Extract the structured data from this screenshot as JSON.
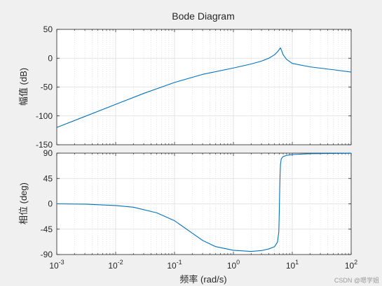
{
  "watermark": "CSDN @嗯学姐",
  "chart_data": [
    {
      "type": "line",
      "panel": "magnitude",
      "title": "Bode Diagram",
      "ylabel": "幅值 (dB)",
      "xscale": "log",
      "xlim": [
        0.001,
        100
      ],
      "ylim": [
        -150,
        50
      ],
      "yticks": [
        50,
        0,
        -50,
        -100,
        -150
      ],
      "grid": true,
      "x": [
        0.001,
        0.003,
        0.01,
        0.03,
        0.1,
        0.3,
        1,
        2,
        3,
        4,
        5,
        5.6,
        6.0,
        6.3,
        6.6,
        7,
        8,
        10,
        20,
        50,
        100
      ],
      "values": [
        -120,
        -101,
        -80,
        -61,
        -42,
        -28,
        -17,
        -10,
        -5,
        0,
        6,
        11,
        15,
        18,
        13,
        6,
        -2,
        -9,
        -15,
        -20,
        -24
      ]
    },
    {
      "type": "line",
      "panel": "phase",
      "ylabel": "相位 (deg)",
      "xlabel": "频率  (rad/s)",
      "xscale": "log",
      "xlim": [
        0.001,
        100
      ],
      "ylim": [
        -90,
        90
      ],
      "yticks": [
        90,
        45,
        0,
        -45,
        -90
      ],
      "xticks": [
        "10^-3",
        "10^-2",
        "10^-1",
        "10^0",
        "10^1",
        "10^2"
      ],
      "grid": true,
      "x": [
        0.001,
        0.003,
        0.01,
        0.02,
        0.05,
        0.1,
        0.2,
        0.3,
        0.5,
        1,
        2,
        3,
        4,
        5,
        5.6,
        5.9,
        6.0,
        6.1,
        6.2,
        6.3,
        6.5,
        7,
        8,
        10,
        20,
        50,
        100
      ],
      "values": [
        0,
        -0.5,
        -3,
        -6,
        -16,
        -30,
        -52,
        -65,
        -76,
        -82.5,
        -84.5,
        -83,
        -80,
        -76,
        -68,
        -50,
        -20,
        20,
        50,
        70,
        80,
        84,
        86,
        87.5,
        89,
        89.5,
        89.8
      ]
    }
  ]
}
